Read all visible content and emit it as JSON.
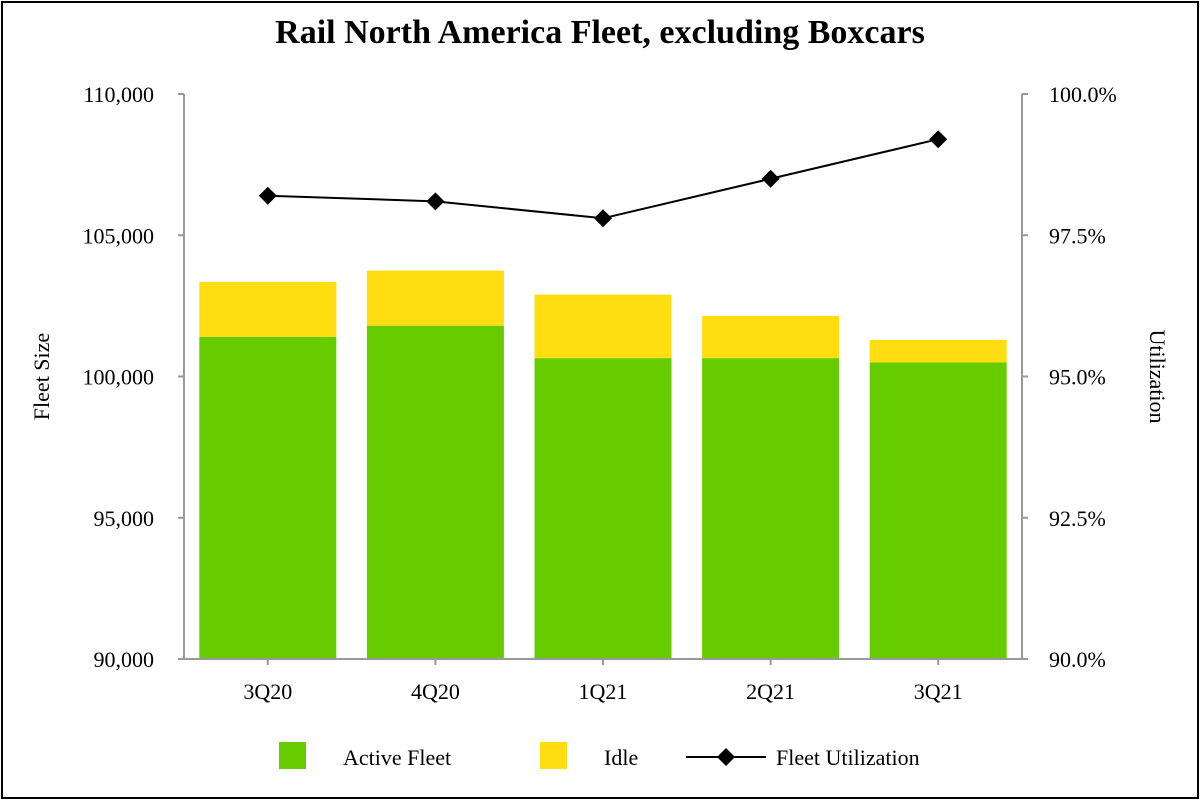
{
  "chart_data": {
    "type": "bar",
    "title": "Rail North America Fleet, excluding Boxcars",
    "categories": [
      "3Q20",
      "4Q20",
      "1Q21",
      "2Q21",
      "3Q21"
    ],
    "series": [
      {
        "name": "Active Fleet",
        "kind": "stacked-bar",
        "axis": "left",
        "color": "#66cc00",
        "values": [
          101400,
          101800,
          100650,
          100650,
          100500
        ]
      },
      {
        "name": "Idle",
        "kind": "stacked-bar",
        "axis": "left",
        "color": "#ffdd11",
        "values": [
          1950,
          1950,
          2250,
          1500,
          800
        ]
      },
      {
        "name": "Fleet Utilization",
        "kind": "line",
        "axis": "right",
        "color": "#000000",
        "values": [
          98.2,
          98.1,
          97.8,
          98.5,
          99.2
        ]
      }
    ],
    "ylabel": "Fleet Size",
    "y2label": "Utilization",
    "ylim": [
      90000,
      110000
    ],
    "y2lim": [
      90.0,
      100.0
    ],
    "yticks": [
      "90,000",
      "95,000",
      "100,000",
      "105,000",
      "110,000"
    ],
    "y2ticks": [
      "90.0%",
      "92.5%",
      "95.0%",
      "97.5%",
      "100.0%"
    ],
    "legend": [
      "Active Fleet",
      "Idle",
      "Fleet Utilization"
    ],
    "legend_position": "bottom"
  }
}
